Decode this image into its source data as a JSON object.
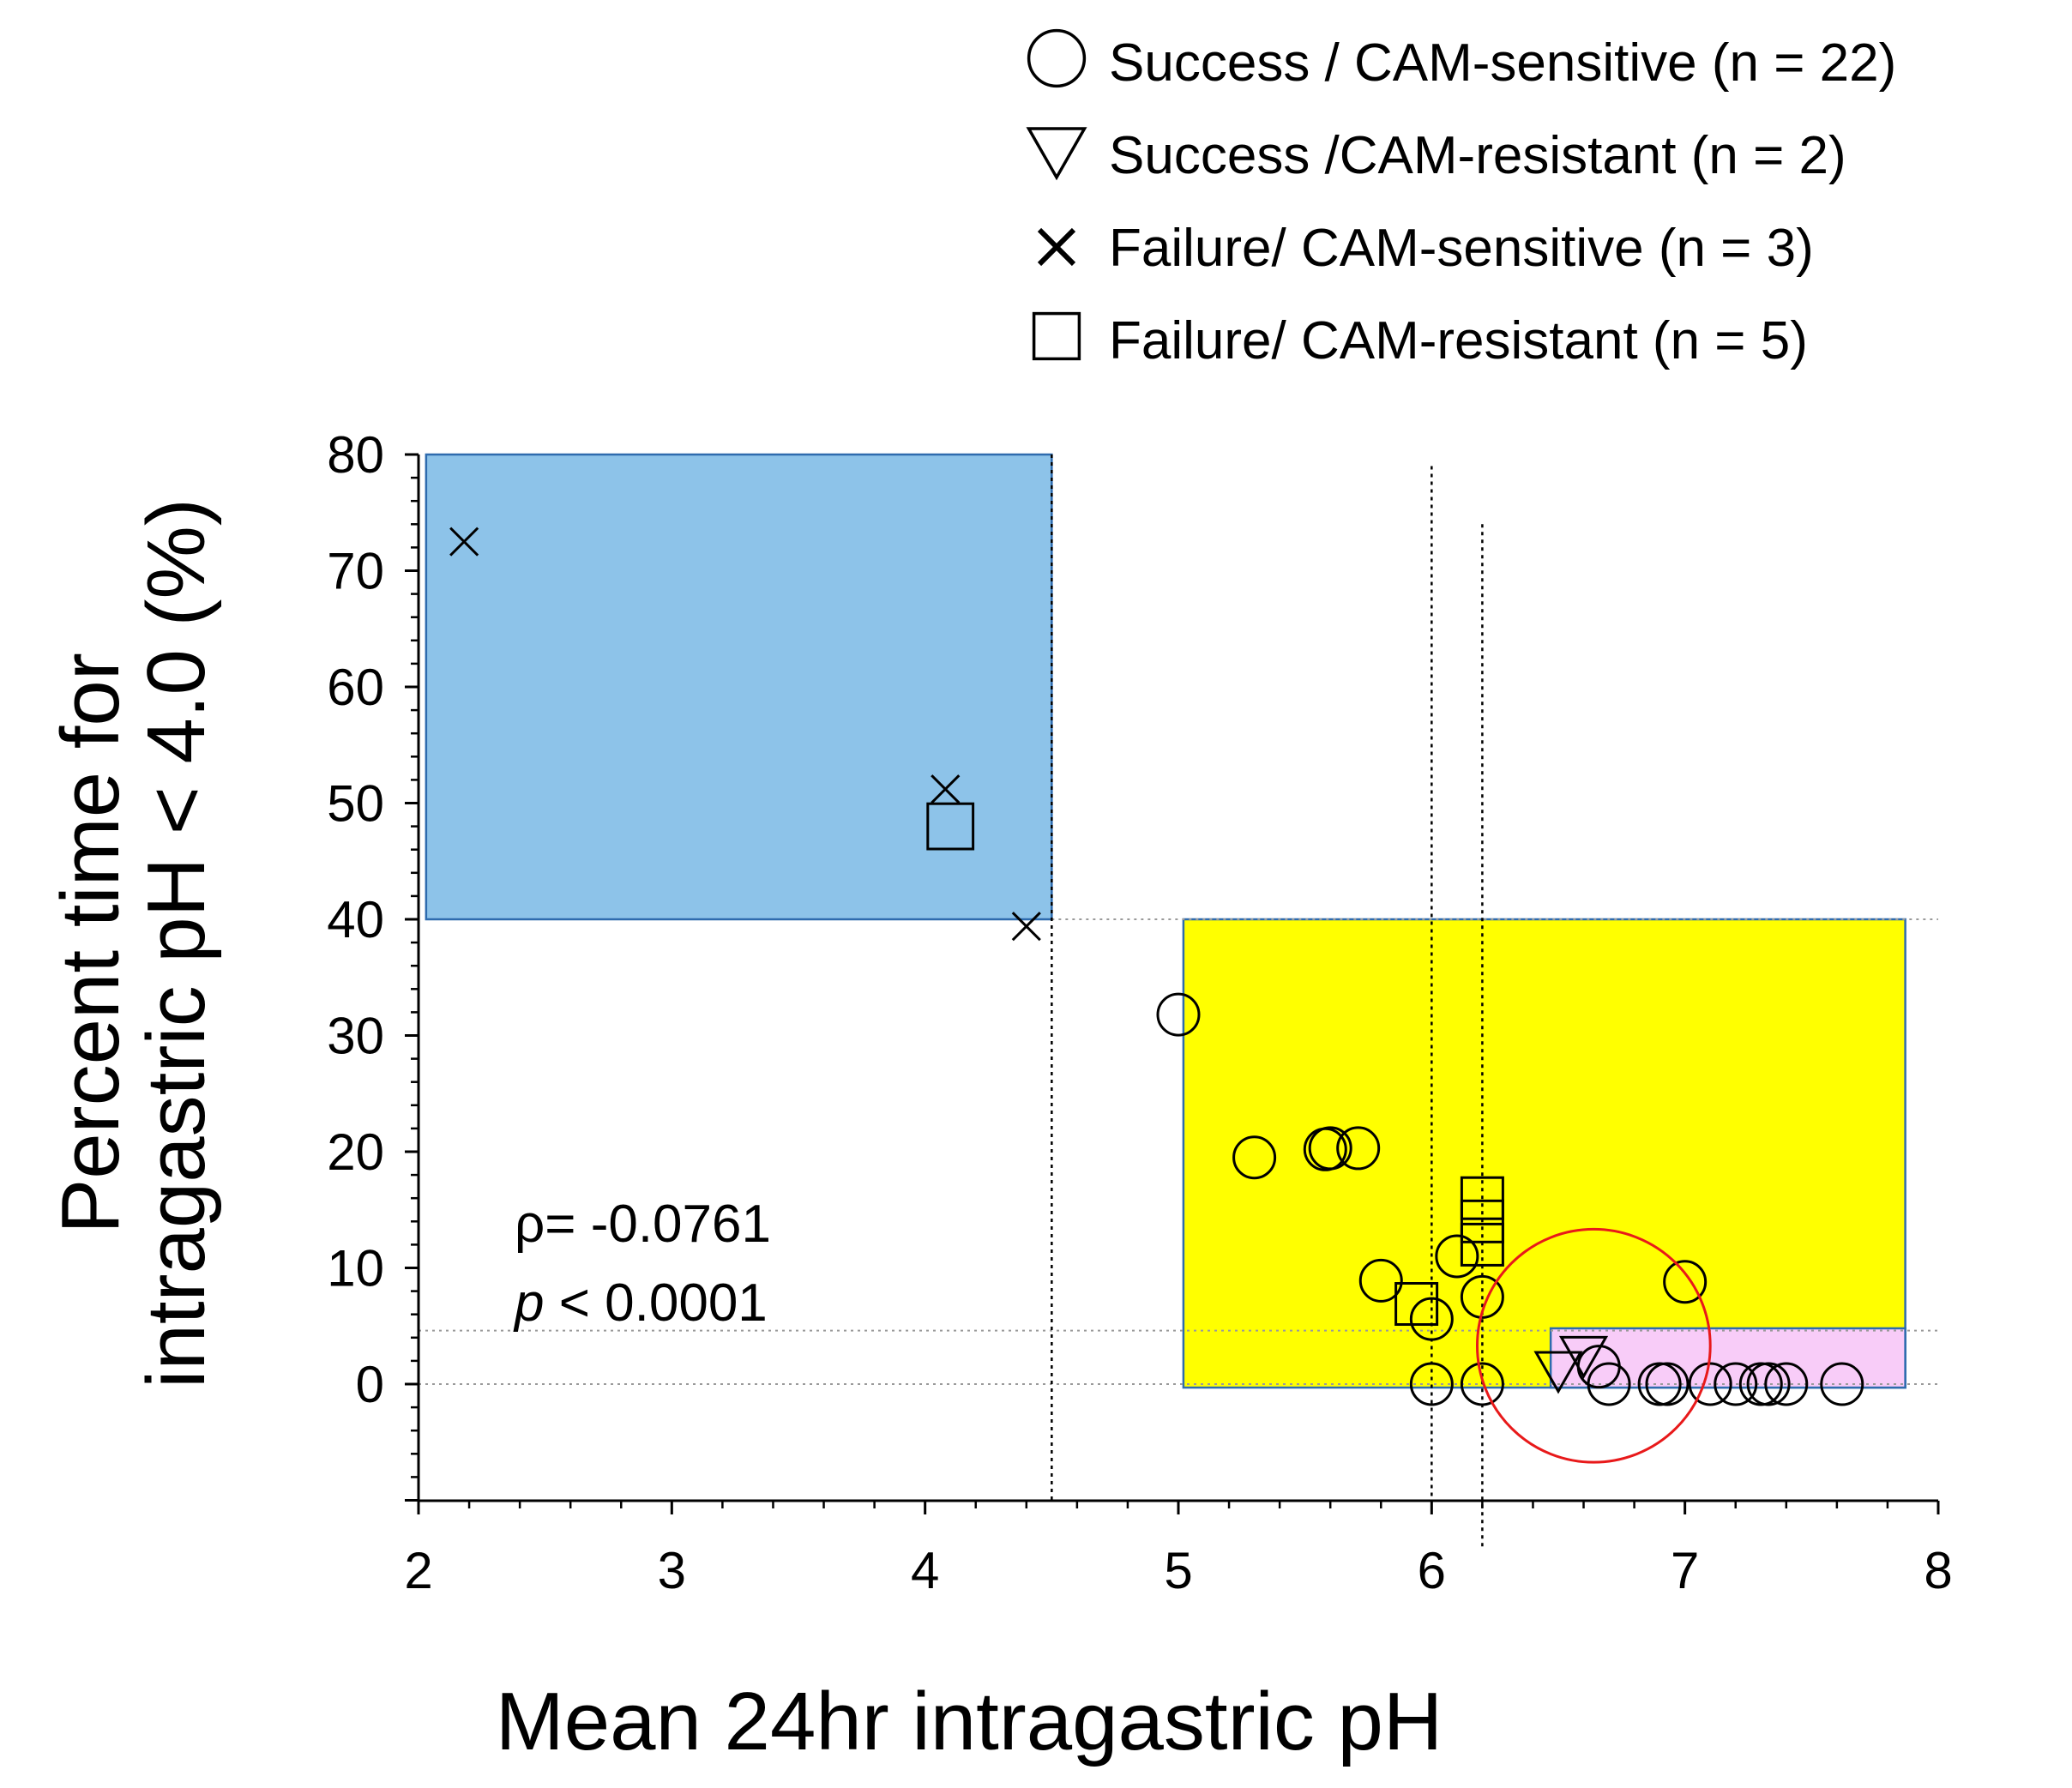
{
  "chart_data": {
    "type": "scatter",
    "xlabel": "Mean 24hr intragastric pH",
    "ylabel_line1": "Percent time for",
    "ylabel_line2": "intragastric pH < 4.0   (%)",
    "xlim": [
      2,
      8
    ],
    "ylim": [
      -10,
      80
    ],
    "x_ticks": [
      2,
      3,
      4,
      5,
      6,
      7,
      8
    ],
    "y_ticks": [
      0,
      10,
      20,
      30,
      40,
      50,
      60,
      70,
      80
    ],
    "legend_position": "top-right",
    "legend": [
      {
        "marker": "circle",
        "label": "Success / CAM-sensitive (n = 22)"
      },
      {
        "marker": "triangle-down",
        "label": "Success /CAM-resistant (n = 2)"
      },
      {
        "marker": "x",
        "label": "Failure/ CAM-sensitive (n = 3)"
      },
      {
        "marker": "square",
        "label": "Failure/ CAM-resistant (n = 5)"
      }
    ],
    "annotation": {
      "rho_label": "ρ= -0.0761",
      "p_symbol": "p",
      "p_rest": " < 0.0001"
    },
    "regions": [
      {
        "name": "blue-region",
        "x": [
          2.03,
          4.5
        ],
        "y": [
          40,
          80
        ],
        "color": "#8DC3E9"
      },
      {
        "name": "yellow-region",
        "x": [
          5.02,
          7.87
        ],
        "y": [
          -0.3,
          40
        ],
        "color": "#FFFF00"
      },
      {
        "name": "pink-region",
        "x": [
          6.47,
          7.87
        ],
        "y": [
          -0.3,
          4.8
        ],
        "color": "#F8CCF8"
      }
    ],
    "ref_lines": {
      "horizontal": [
        {
          "y": 40,
          "x": [
            4.5,
            8.0
          ]
        },
        {
          "y": 4.6,
          "x": [
            2.0,
            8.0
          ]
        },
        {
          "y": 0,
          "x": [
            2.0,
            8.0
          ]
        }
      ],
      "vertical": [
        {
          "x": 4.5,
          "y": [
            -10,
            80
          ]
        },
        {
          "x": 6.0,
          "y": [
            -10,
            79
          ]
        },
        {
          "x": 6.2,
          "y": [
            -14,
            74
          ]
        }
      ]
    },
    "highlight_circle": {
      "cx": 6.64,
      "cy": 3.3,
      "r": 0.46,
      "color": "#E8191A"
    },
    "series": [
      {
        "name": "Success / CAM-sensitive",
        "marker": "circle",
        "points": [
          [
            5.0,
            31.8
          ],
          [
            5.3,
            19.5
          ],
          [
            5.58,
            20.2
          ],
          [
            5.6,
            20.3
          ],
          [
            5.71,
            20.3
          ],
          [
            5.8,
            8.9
          ],
          [
            6.0,
            5.6
          ],
          [
            6.1,
            11.0
          ],
          [
            6.2,
            7.5
          ],
          [
            7.0,
            8.8
          ],
          [
            6.0,
            0
          ],
          [
            6.2,
            0
          ],
          [
            6.66,
            1.5
          ],
          [
            6.7,
            0
          ],
          [
            6.9,
            0
          ],
          [
            6.93,
            0
          ],
          [
            7.1,
            0
          ],
          [
            7.2,
            0
          ],
          [
            7.3,
            0
          ],
          [
            7.33,
            0
          ],
          [
            7.4,
            0
          ],
          [
            7.62,
            0
          ]
        ]
      },
      {
        "name": "Success / CAM-resistant",
        "marker": "triangle-down",
        "points": [
          [
            6.5,
            1.2
          ],
          [
            6.6,
            2.5
          ]
        ]
      },
      {
        "name": "Failure / CAM-sensitive",
        "marker": "x",
        "points": [
          [
            2.18,
            72.5
          ],
          [
            4.08,
            51.2
          ],
          [
            4.4,
            39.4
          ]
        ]
      },
      {
        "name": "Failure / CAM-resistant",
        "marker": "square",
        "points": [
          [
            4.1,
            48.0
          ],
          [
            5.94,
            6.9
          ],
          [
            6.2,
            16.0
          ],
          [
            6.2,
            14.0
          ],
          [
            6.2,
            12.0
          ]
        ]
      }
    ]
  }
}
